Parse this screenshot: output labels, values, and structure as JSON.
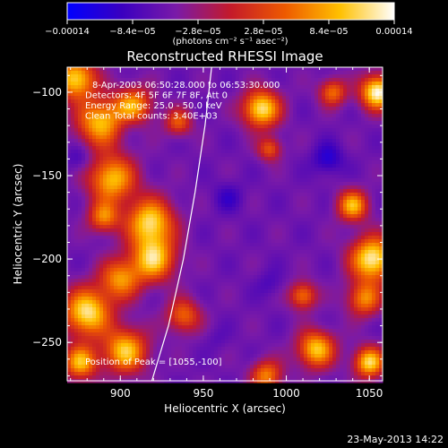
{
  "chart_data": {
    "type": "heatmap",
    "title": "Reconstructed RHESSI Image",
    "xlabel": "Heliocentric X (arcsec)",
    "ylabel": "Heliocentric Y (arcsec)",
    "xlim": [
      868,
      1058
    ],
    "ylim": [
      -273,
      -85
    ],
    "xticks": [
      900,
      950,
      1000,
      1050
    ],
    "yticks": [
      -100,
      -150,
      -200,
      -250
    ],
    "xtick_labels": [
      "900",
      "950",
      "1000",
      "1050"
    ],
    "ytick_labels": [
      "−100",
      "−150",
      "−200",
      "−250"
    ],
    "colorbar": {
      "range": [
        -0.00014,
        0.00014
      ],
      "ticks": [
        -0.00014,
        -8.4e-05,
        -2.8e-05,
        2.8e-05,
        8.4e-05,
        0.00014
      ],
      "tick_labels": [
        "−0.00014",
        "−8.4e−05",
        "−2.8e−05",
        "2.8e−05",
        "8.4e−05",
        "0.00014"
      ],
      "label": "(photons cm⁻² s⁻¹ asec⁻²)",
      "colors": [
        "#0000ff",
        "#3a00c0",
        "#7a1aa8",
        "#c41a2a",
        "#ee5a00",
        "#ffc000",
        "#ffffff"
      ]
    },
    "annotations": [
      "8-Apr-2003 06:50:28.000 to 06:53:30.000",
      "Detectors: 4F 5F 6F 7F 8F, Att 0",
      "Energy Range: 25.0 - 50.0 keV",
      "Clean      Total counts: 3.40E+03"
    ],
    "peak_label": "Position of Peak = [1055,-100]",
    "peak": {
      "x": 1055,
      "y": -100
    },
    "limb_curve": [
      [
        955,
        -85
      ],
      [
        951,
        -120
      ],
      [
        945,
        -160
      ],
      [
        938,
        -200
      ],
      [
        929,
        -240
      ],
      [
        919,
        -273
      ]
    ],
    "sources": [
      {
        "x": 873,
        "y": -92,
        "r": 12,
        "v": 0.00011
      },
      {
        "x": 888,
        "y": -118,
        "r": 14,
        "v": 9.5e-05
      },
      {
        "x": 908,
        "y": -108,
        "r": 11,
        "v": 7.5e-05
      },
      {
        "x": 895,
        "y": -152,
        "r": 14,
        "v": 9.5e-05
      },
      {
        "x": 890,
        "y": -175,
        "r": 9,
        "v": 6e-05
      },
      {
        "x": 918,
        "y": -178,
        "r": 14,
        "v": 0.00011
      },
      {
        "x": 920,
        "y": -200,
        "r": 13,
        "v": 0.0001
      },
      {
        "x": 900,
        "y": -212,
        "r": 12,
        "v": 7e-05
      },
      {
        "x": 880,
        "y": -232,
        "r": 14,
        "v": 0.00012
      },
      {
        "x": 903,
        "y": -255,
        "r": 13,
        "v": 0.0001
      },
      {
        "x": 876,
        "y": -262,
        "r": 10,
        "v": 9e-05
      },
      {
        "x": 938,
        "y": -234,
        "r": 10,
        "v": 5e-05
      },
      {
        "x": 935,
        "y": -118,
        "r": 8,
        "v": 4e-05
      },
      {
        "x": 985,
        "y": -110,
        "r": 11,
        "v": 0.00012
      },
      {
        "x": 990,
        "y": -134,
        "r": 7,
        "v": 4e-05
      },
      {
        "x": 1028,
        "y": -100,
        "r": 8,
        "v": 5.5e-05
      },
      {
        "x": 1055,
        "y": -100,
        "r": 10,
        "v": 0.00014
      },
      {
        "x": 1040,
        "y": -168,
        "r": 9,
        "v": 9e-05
      },
      {
        "x": 1052,
        "y": -200,
        "r": 13,
        "v": 0.00013
      },
      {
        "x": 1047,
        "y": -224,
        "r": 10,
        "v": 6.5e-05
      },
      {
        "x": 1010,
        "y": -222,
        "r": 8,
        "v": 6e-05
      },
      {
        "x": 1018,
        "y": -254,
        "r": 11,
        "v": 0.0001
      },
      {
        "x": 1050,
        "y": -262,
        "r": 9,
        "v": 0.00011
      },
      {
        "x": 988,
        "y": -270,
        "r": 9,
        "v": 6.5e-05
      },
      {
        "x": 875,
        "y": -140,
        "r": 8,
        "v": -9e-05
      },
      {
        "x": 905,
        "y": -120,
        "r": 8,
        "v": -8e-05
      },
      {
        "x": 965,
        "y": -163,
        "r": 9,
        "v": -9e-05
      },
      {
        "x": 990,
        "y": -215,
        "r": 8,
        "v": -8e-05
      },
      {
        "x": 958,
        "y": -248,
        "r": 7,
        "v": -7e-05
      },
      {
        "x": 1025,
        "y": -140,
        "r": 9,
        "v": -0.00011
      },
      {
        "x": 1020,
        "y": -240,
        "r": 6,
        "v": -6e-05
      },
      {
        "x": 1000,
        "y": -262,
        "r": 6,
        "v": -5e-05
      }
    ],
    "background_value": -5.5e-05
  },
  "footer": {
    "timestamp": "23-May-2013 14:22"
  }
}
